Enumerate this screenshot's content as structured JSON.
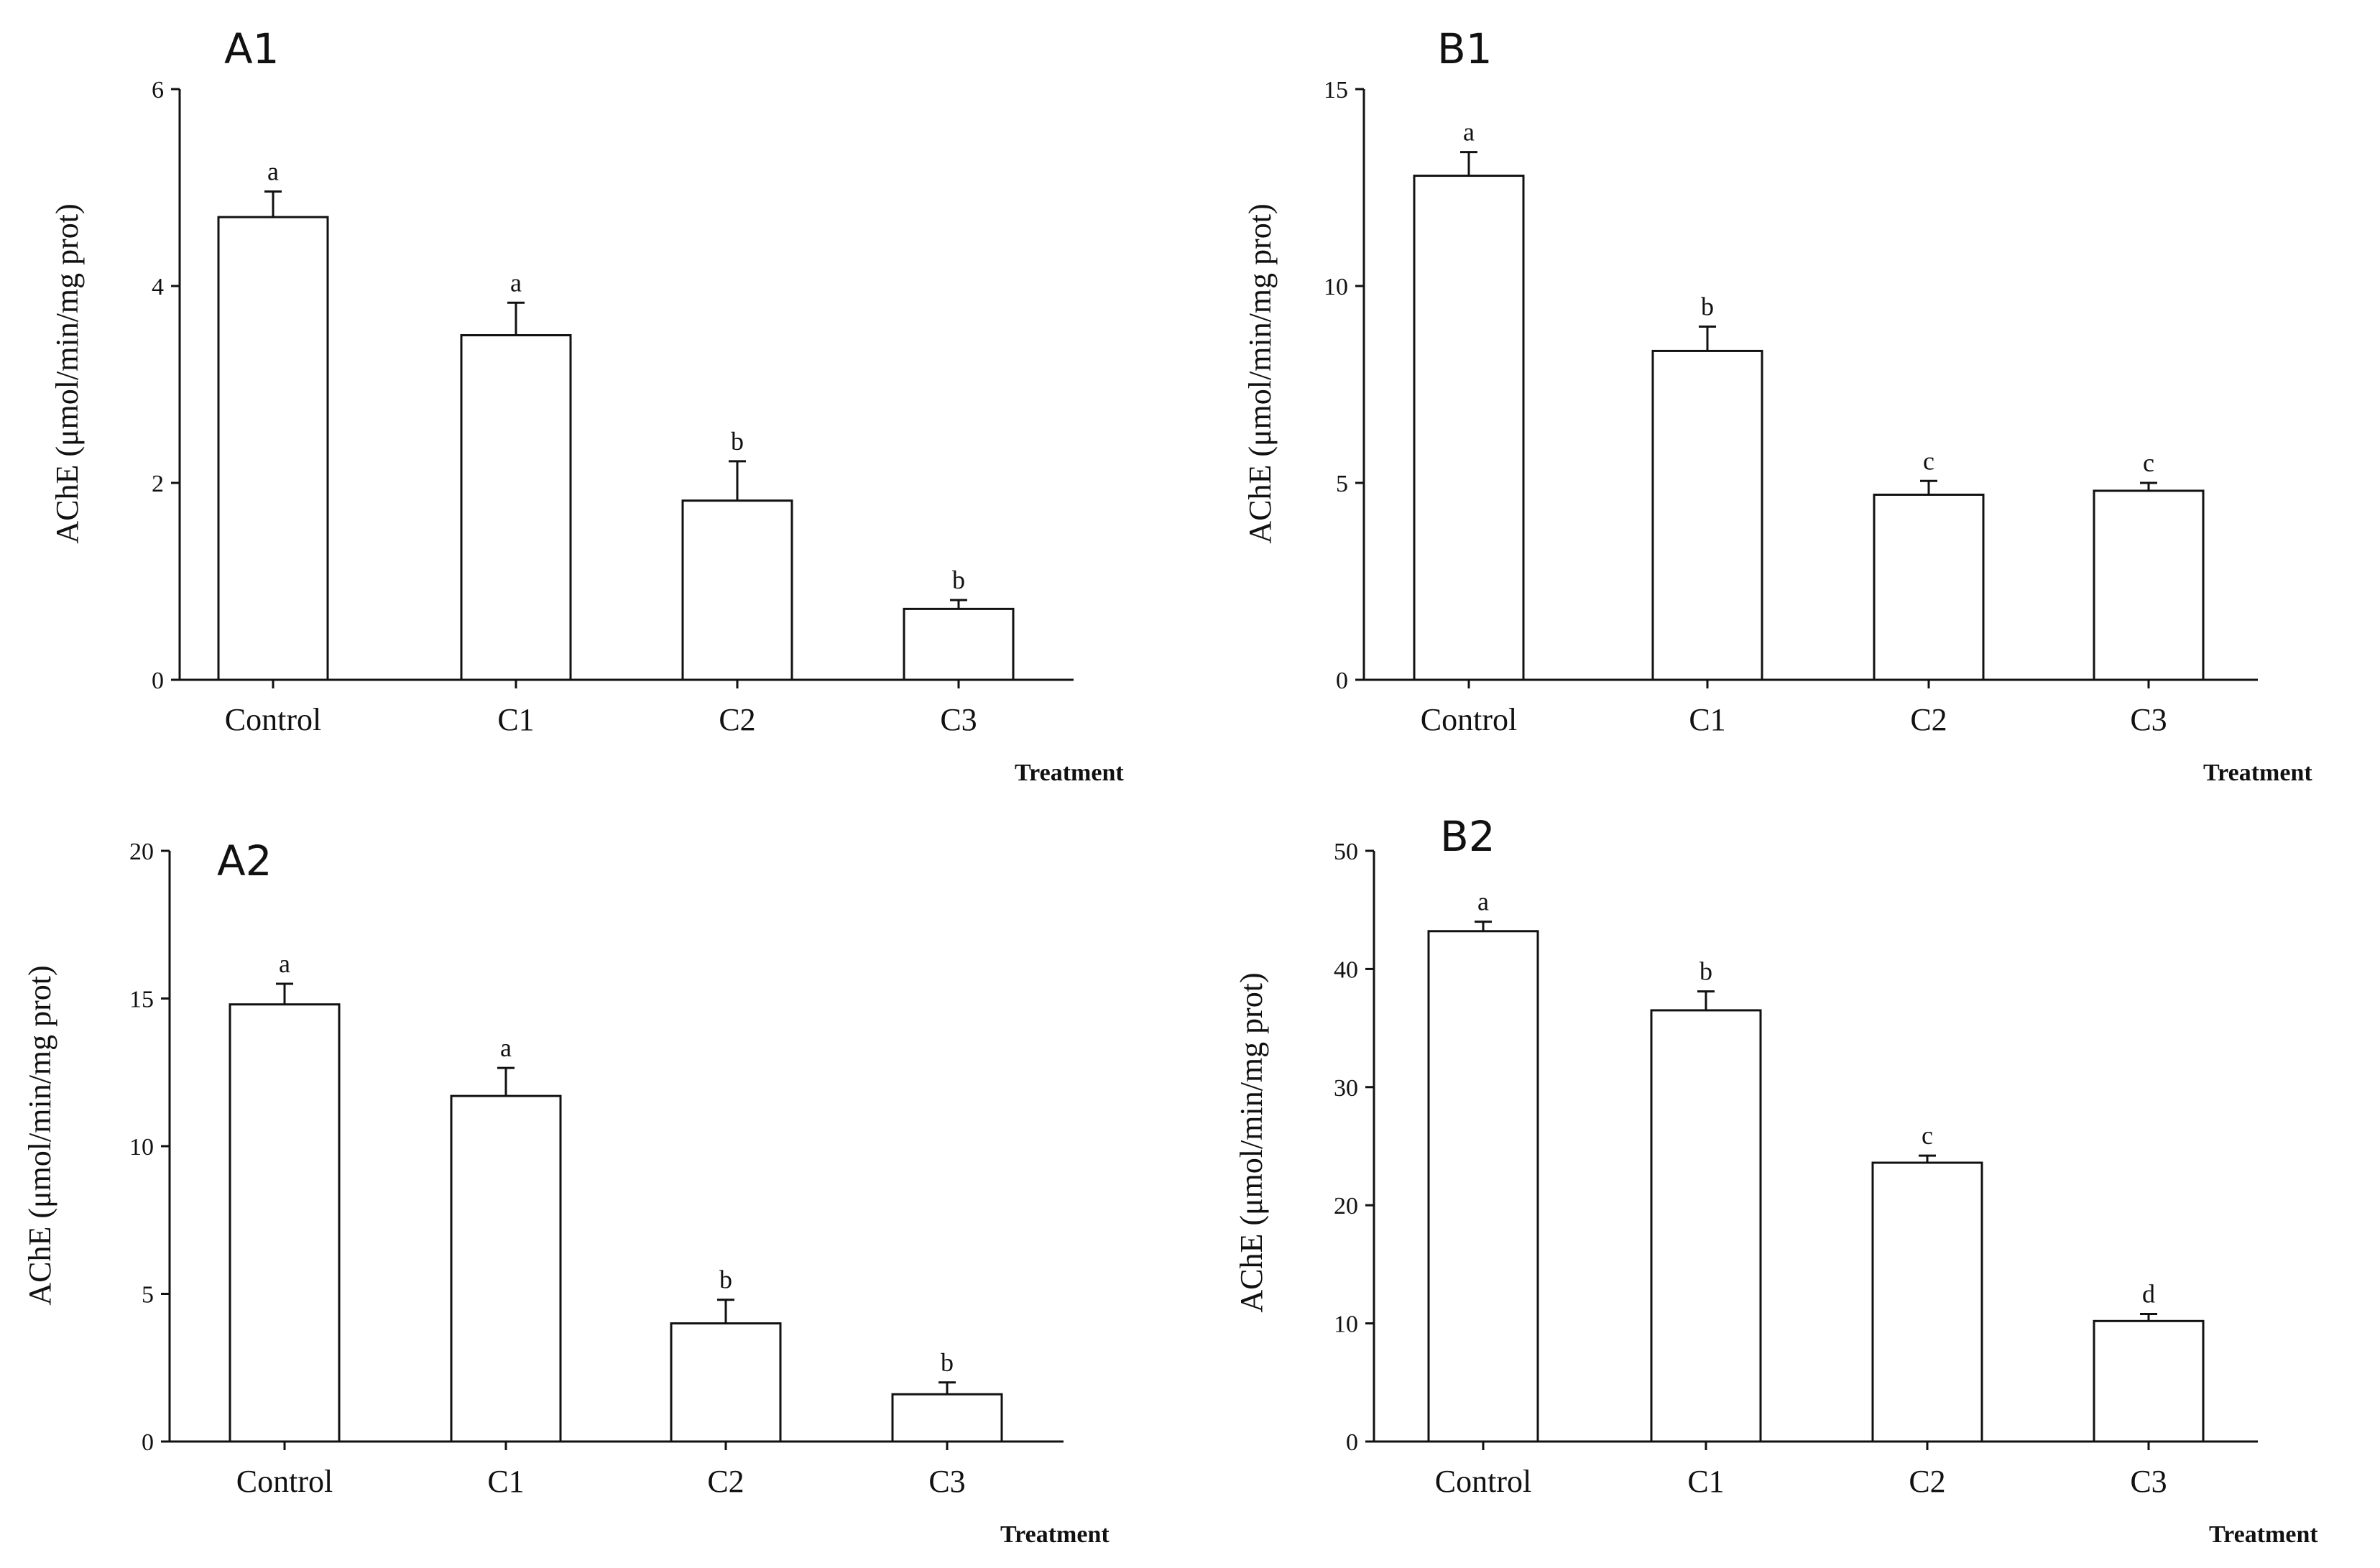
{
  "chart_data": [
    {
      "panel": "A1",
      "type": "bar",
      "categories": [
        "Control",
        "C1",
        "C2",
        "C3"
      ],
      "values": [
        4.7,
        3.5,
        1.82,
        0.72
      ],
      "errors": [
        0.26,
        0.33,
        0.4,
        0.09
      ],
      "significance": [
        "a",
        "a",
        "b",
        "b"
      ],
      "ylabel": "AChE (μmol/min/mg prot)",
      "xlabel": "Treatment",
      "ylim": [
        0,
        6
      ],
      "yticks": [
        0,
        2,
        4,
        6
      ],
      "ytick_labels": [
        "0",
        "2",
        "4",
        "6"
      ]
    },
    {
      "panel": "B1",
      "type": "bar",
      "categories": [
        "Control",
        "C1",
        "C2",
        "C3"
      ],
      "values": [
        12.8,
        8.35,
        4.7,
        4.8
      ],
      "errors": [
        0.6,
        0.62,
        0.35,
        0.2
      ],
      "significance": [
        "a",
        "b",
        "c",
        "c"
      ],
      "ylabel": "AChE (μmol/min/mg prot)",
      "xlabel": "Treatment",
      "ylim": [
        0,
        15
      ],
      "yticks": [
        0,
        5,
        10,
        15
      ],
      "ytick_labels": [
        "0",
        "5",
        "10",
        "15"
      ]
    },
    {
      "panel": "A2",
      "type": "bar",
      "categories": [
        "Control",
        "C1",
        "C2",
        "C3"
      ],
      "values": [
        14.8,
        11.7,
        4.0,
        1.6
      ],
      "errors": [
        0.7,
        0.95,
        0.8,
        0.4
      ],
      "significance": [
        "a",
        "a",
        "b",
        "b"
      ],
      "ylabel": "AChE (μmol/min/mg prot)",
      "xlabel": "Treatment",
      "ylim": [
        0,
        20
      ],
      "yticks": [
        0,
        5,
        10,
        15,
        20
      ],
      "ytick_labels": [
        "0",
        "5",
        "10",
        "15",
        "20"
      ]
    },
    {
      "panel": "B2",
      "type": "bar",
      "categories": [
        "Control",
        "C1",
        "C2",
        "C3"
      ],
      "values": [
        43.2,
        36.5,
        23.6,
        10.2
      ],
      "errors": [
        0.8,
        1.6,
        0.6,
        0.6
      ],
      "significance": [
        "a",
        "b",
        "c",
        "d"
      ],
      "ylabel": "AChE (μmol/min/mg prot)",
      "xlabel": "Treatment",
      "ylim": [
        0,
        50
      ],
      "yticks": [
        0,
        10,
        20,
        30,
        40,
        50
      ],
      "ytick_labels": [
        "0",
        "10",
        "20",
        "30",
        "40",
        "50"
      ]
    }
  ]
}
